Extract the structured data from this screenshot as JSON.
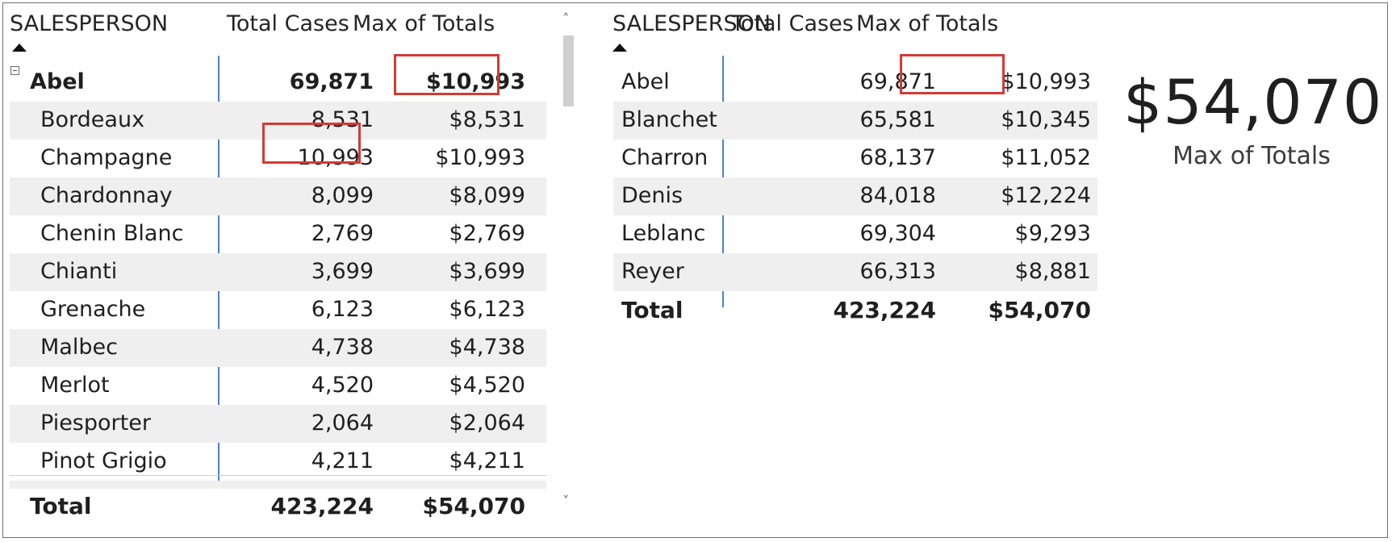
{
  "left_matrix": {
    "headers": {
      "salesperson": "SALESPERSON",
      "total_cases": "Total Cases",
      "max_totals": "Max of Totals"
    },
    "rows": [
      {
        "name": "Abel",
        "cases": "69,871",
        "max": "$10,993",
        "level": "parent"
      },
      {
        "name": "Bordeaux",
        "cases": "8,531",
        "max": "$8,531"
      },
      {
        "name": "Champagne",
        "cases": "10,993",
        "max": "$10,993"
      },
      {
        "name": "Chardonnay",
        "cases": "8,099",
        "max": "$8,099"
      },
      {
        "name": "Chenin Blanc",
        "cases": "2,769",
        "max": "$2,769"
      },
      {
        "name": "Chianti",
        "cases": "3,699",
        "max": "$3,699"
      },
      {
        "name": "Grenache",
        "cases": "6,123",
        "max": "$6,123"
      },
      {
        "name": "Malbec",
        "cases": "4,738",
        "max": "$4,738"
      },
      {
        "name": "Merlot",
        "cases": "4,520",
        "max": "$4,520"
      },
      {
        "name": "Piesporter",
        "cases": "2,064",
        "max": "$2,064"
      },
      {
        "name": "Pinot Grigio",
        "cases": "4,211",
        "max": "$4,211"
      }
    ],
    "total": {
      "label": "Total",
      "cases": "423,224",
      "max": "$54,070"
    },
    "scroll_up": "˄",
    "scroll_down": "˅"
  },
  "right_table": {
    "headers": {
      "salesperson": "SALESPERSON",
      "total_cases": "Total Cases",
      "max_totals": "Max of Totals"
    },
    "rows": [
      {
        "name": "Abel",
        "cases": "69,871",
        "max": "$10,993"
      },
      {
        "name": "Blanchet",
        "cases": "65,581",
        "max": "$10,345"
      },
      {
        "name": "Charron",
        "cases": "68,137",
        "max": "$11,052"
      },
      {
        "name": "Denis",
        "cases": "84,018",
        "max": "$12,224"
      },
      {
        "name": "Leblanc",
        "cases": "69,304",
        "max": "$9,293"
      },
      {
        "name": "Reyer",
        "cases": "66,313",
        "max": "$8,881"
      }
    ],
    "total": {
      "label": "Total",
      "cases": "423,224",
      "max": "$54,070"
    }
  },
  "card": {
    "value": "$54,070",
    "label": "Max of Totals"
  },
  "colors": {
    "highlight": "#d43a35",
    "divider": "#4f7fc7",
    "row_shade": "#efefef"
  }
}
